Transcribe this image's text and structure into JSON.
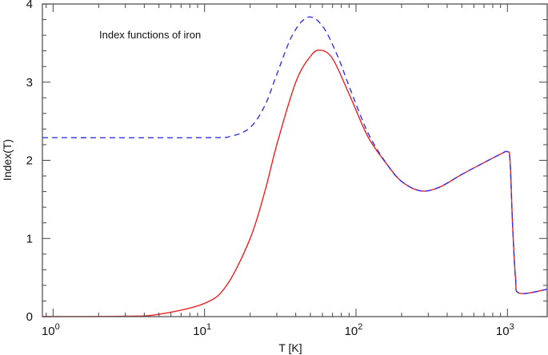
{
  "chart_data": {
    "type": "line",
    "title": "",
    "annotation": "Index functions of iron",
    "xlabel": "T [K]",
    "ylabel": "Index(T)",
    "xscale": "log",
    "xlim": [
      0.85,
      1830
    ],
    "ylim": [
      0,
      4
    ],
    "grid": false,
    "legend": null,
    "x_tick_labels": [
      {
        "base": "10",
        "exp": "0",
        "value": 1
      },
      {
        "base": "10",
        "exp": "1",
        "value": 10
      },
      {
        "base": "10",
        "exp": "2",
        "value": 100
      },
      {
        "base": "10",
        "exp": "3",
        "value": 1000
      }
    ],
    "y_tick_labels": [
      "0",
      "1",
      "2",
      "3",
      "4"
    ],
    "y_ticks": [
      0,
      1,
      2,
      3,
      4
    ],
    "series": [
      {
        "name": "solid-red",
        "color": "#ee2222",
        "style": "solid",
        "x": [
          0.85,
          3,
          5,
          10,
          14,
          20,
          25,
          30,
          40,
          50,
          58,
          70,
          90,
          120,
          160,
          200,
          265,
          350,
          500,
          700,
          900,
          1000,
          1040,
          1080,
          1130,
          1200,
          1830
        ],
        "y": [
          0,
          0.005,
          0.03,
          0.17,
          0.4,
          1.0,
          1.6,
          2.2,
          3.0,
          3.33,
          3.41,
          3.3,
          2.85,
          2.3,
          1.95,
          1.73,
          1.61,
          1.65,
          1.82,
          1.97,
          2.08,
          2.11,
          2.0,
          1.2,
          0.5,
          0.3,
          0.35
        ]
      },
      {
        "name": "dashed-blue",
        "color": "#3333ee",
        "style": "dashed",
        "x": [
          0.85,
          10,
          15,
          20,
          25,
          30,
          38,
          48,
          60,
          75,
          90,
          120,
          160,
          200,
          265,
          350,
          500,
          700,
          900,
          1000,
          1040,
          1080,
          1130,
          1200,
          1830
        ],
        "y": [
          2.29,
          2.29,
          2.31,
          2.42,
          2.7,
          3.1,
          3.6,
          3.83,
          3.72,
          3.35,
          2.95,
          2.35,
          1.95,
          1.73,
          1.61,
          1.65,
          1.82,
          1.97,
          2.08,
          2.11,
          2.0,
          1.2,
          0.5,
          0.3,
          0.35
        ]
      }
    ]
  }
}
